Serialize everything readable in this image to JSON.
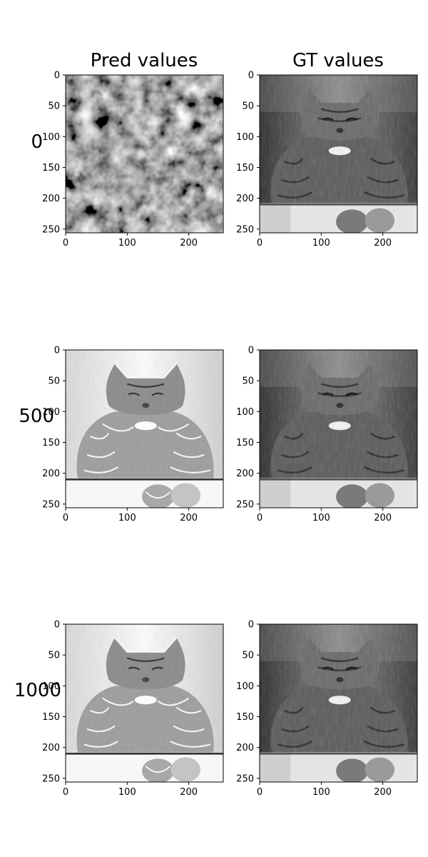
{
  "columns": [
    "Pred values",
    "GT values"
  ],
  "rows": [
    "0",
    "500",
    "1000"
  ],
  "chart_data": [
    {
      "type": "heatmap",
      "panel": "pred",
      "step": "0",
      "x_ticks": [
        0,
        100,
        200
      ],
      "y_ticks": [
        0,
        50,
        100,
        150,
        200,
        250
      ],
      "xlim": [
        0,
        256
      ],
      "ylim": [
        256,
        0
      ],
      "content": "noise"
    },
    {
      "type": "heatmap",
      "panel": "gt",
      "step": "0",
      "x_ticks": [
        0,
        100,
        200
      ],
      "y_ticks": [
        0,
        50,
        100,
        150,
        200,
        250
      ],
      "xlim": [
        0,
        256
      ],
      "ylim": [
        256,
        0
      ],
      "content": "cat"
    },
    {
      "type": "heatmap",
      "panel": "pred",
      "step": "500",
      "x_ticks": [
        0,
        100,
        200
      ],
      "y_ticks": [
        0,
        50,
        100,
        150,
        200,
        250
      ],
      "xlim": [
        0,
        256
      ],
      "ylim": [
        256,
        0
      ],
      "content": "cat-light"
    },
    {
      "type": "heatmap",
      "panel": "gt",
      "step": "500",
      "x_ticks": [
        0,
        100,
        200
      ],
      "y_ticks": [
        0,
        50,
        100,
        150,
        200,
        250
      ],
      "xlim": [
        0,
        256
      ],
      "ylim": [
        256,
        0
      ],
      "content": "cat"
    },
    {
      "type": "heatmap",
      "panel": "pred",
      "step": "1000",
      "x_ticks": [
        0,
        100,
        200
      ],
      "y_ticks": [
        0,
        50,
        100,
        150,
        200,
        250
      ],
      "xlim": [
        0,
        256
      ],
      "ylim": [
        256,
        0
      ],
      "content": "cat-light"
    },
    {
      "type": "heatmap",
      "panel": "gt",
      "step": "1000",
      "x_ticks": [
        0,
        100,
        200
      ],
      "y_ticks": [
        0,
        50,
        100,
        150,
        200,
        250
      ],
      "xlim": [
        0,
        256
      ],
      "ylim": [
        256,
        0
      ],
      "content": "cat"
    }
  ]
}
